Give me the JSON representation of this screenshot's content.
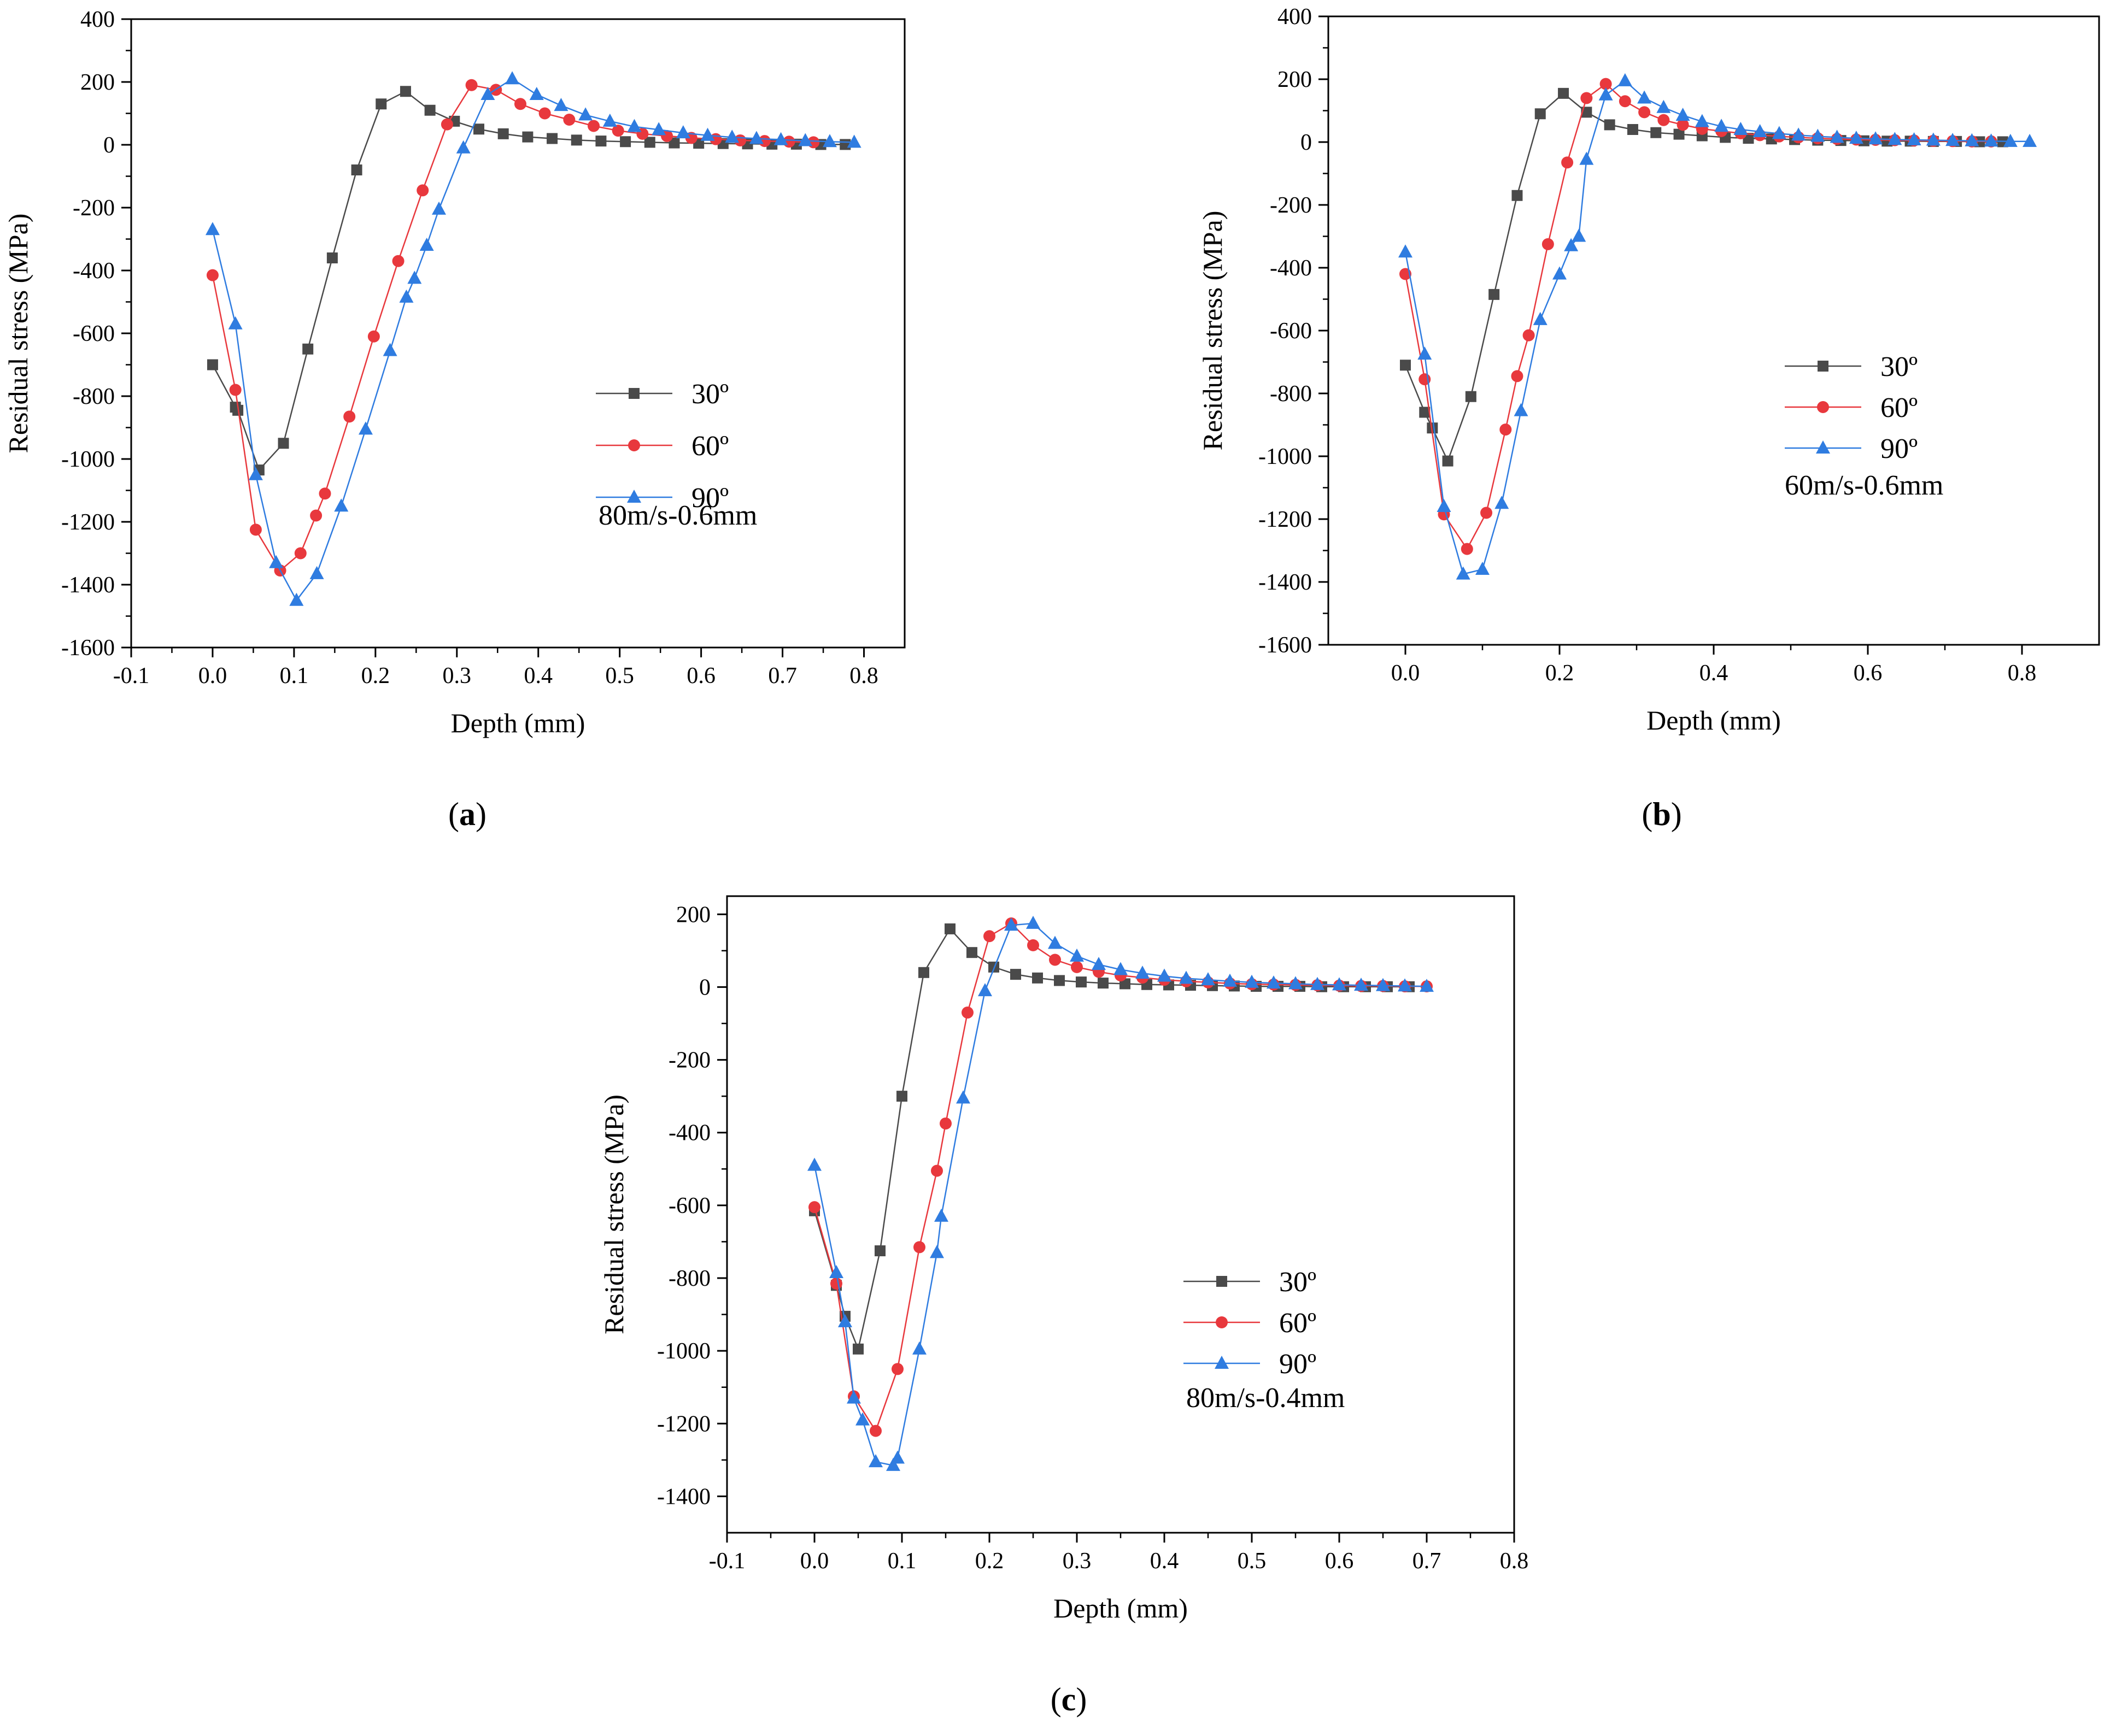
{
  "colors": {
    "30": "#4a4a4a",
    "60": "#e8383d",
    "90": "#2f7ce0"
  },
  "chart_data": [
    {
      "type": "line",
      "caption": "a",
      "xlabel": "Depth (mm)",
      "ylabel": "Residual stress (MPa)",
      "xlim": [
        -0.1,
        0.85
      ],
      "ylim": [
        -1600,
        400
      ],
      "xticks": [
        -0.1,
        0.0,
        0.1,
        0.2,
        0.3,
        0.4,
        0.5,
        0.6,
        0.7,
        0.8
      ],
      "xtick_labels": [
        "-0.1",
        "0.0",
        "0.1",
        "0.2",
        "0.3",
        "0.4",
        "0.5",
        "0.6",
        "0.7",
        "0.8"
      ],
      "yticks": [
        -1600,
        -1400,
        -1200,
        -1000,
        -800,
        -600,
        -400,
        -200,
        0,
        200,
        400
      ],
      "ytick_labels": [
        "-1600",
        "-1400",
        "-1200",
        "-1000",
        "-800",
        "-600",
        "-400",
        "-200",
        "0",
        "200",
        "400"
      ],
      "annotation": "80m/s-0.6mm",
      "legend_position": "center-right",
      "series": [
        {
          "name": "30º",
          "marker": "square",
          "color": "#4a4a4a",
          "x": [
            0.0,
            0.028,
            0.031,
            0.057,
            0.087,
            0.117,
            0.147,
            0.177,
            0.207,
            0.237,
            0.267,
            0.297,
            0.327,
            0.357,
            0.387,
            0.417,
            0.447,
            0.477,
            0.507,
            0.537,
            0.567,
            0.597,
            0.627,
            0.657,
            0.687,
            0.717,
            0.747,
            0.777
          ],
          "y": [
            -700,
            -835,
            -845,
            -1035,
            -950,
            -650,
            -360,
            -80,
            130,
            170,
            110,
            75,
            50,
            35,
            25,
            20,
            15,
            12,
            10,
            8,
            6,
            5,
            4,
            3,
            2,
            2,
            1,
            1
          ]
        },
        {
          "name": "60º",
          "marker": "circle",
          "color": "#e8383d",
          "x": [
            0.0,
            0.028,
            0.053,
            0.083,
            0.108,
            0.127,
            0.138,
            0.168,
            0.198,
            0.228,
            0.258,
            0.288,
            0.318,
            0.348,
            0.378,
            0.408,
            0.438,
            0.468,
            0.498,
            0.528,
            0.558,
            0.588,
            0.618,
            0.648,
            0.678,
            0.708,
            0.738
          ],
          "y": [
            -415,
            -780,
            -1225,
            -1355,
            -1300,
            -1180,
            -1110,
            -865,
            -610,
            -370,
            -145,
            65,
            190,
            175,
            130,
            100,
            80,
            60,
            45,
            35,
            28,
            22,
            18,
            14,
            12,
            10,
            8
          ]
        },
        {
          "name": "90º",
          "marker": "triangle",
          "color": "#2f7ce0",
          "x": [
            0.0,
            0.028,
            0.053,
            0.078,
            0.103,
            0.128,
            0.158,
            0.188,
            0.218,
            0.238,
            0.248,
            0.263,
            0.278,
            0.308,
            0.338,
            0.368,
            0.398,
            0.428,
            0.458,
            0.488,
            0.518,
            0.548,
            0.578,
            0.608,
            0.638,
            0.668,
            0.698,
            0.728,
            0.758,
            0.788
          ],
          "y": [
            -270,
            -570,
            -1050,
            -1330,
            -1450,
            -1365,
            -1150,
            -905,
            -655,
            -485,
            -425,
            -320,
            -205,
            -10,
            160,
            210,
            160,
            125,
            95,
            75,
            58,
            48,
            38,
            30,
            24,
            20,
            16,
            13,
            10,
            8
          ]
        }
      ]
    },
    {
      "type": "line",
      "caption": "b",
      "xlabel": "Depth (mm)",
      "ylabel": "Residual stress (MPa)",
      "xlim": [
        -0.1,
        0.9
      ],
      "ylim": [
        -1600,
        400
      ],
      "xticks": [
        0.0,
        0.2,
        0.4,
        0.6,
        0.8
      ],
      "xtick_labels": [
        "0.0",
        "0.2",
        "0.4",
        "0.6",
        "0.8"
      ],
      "yticks": [
        -1600,
        -1400,
        -1200,
        -1000,
        -800,
        -600,
        -400,
        -200,
        0,
        200,
        400
      ],
      "ytick_labels": [
        "-1600",
        "-1400",
        "-1200",
        "-1000",
        "-800",
        "-600",
        "-400",
        "-200",
        "0",
        "200",
        "400"
      ],
      "annotation": "60m/s-0.6mm",
      "legend_position": "center-right",
      "series": [
        {
          "name": "30º",
          "marker": "square",
          "color": "#4a4a4a",
          "x": [
            0.0,
            0.025,
            0.035,
            0.055,
            0.085,
            0.115,
            0.145,
            0.175,
            0.205,
            0.235,
            0.265,
            0.295,
            0.325,
            0.355,
            0.385,
            0.415,
            0.445,
            0.475,
            0.505,
            0.535,
            0.565,
            0.595,
            0.625,
            0.655,
            0.685,
            0.715,
            0.745,
            0.775
          ],
          "y": [
            -710,
            -860,
            -910,
            -1015,
            -810,
            -485,
            -170,
            90,
            155,
            95,
            55,
            40,
            30,
            25,
            20,
            15,
            12,
            10,
            8,
            6,
            5,
            4,
            3,
            3,
            2,
            2,
            1,
            1
          ]
        },
        {
          "name": "60º",
          "marker": "circle",
          "color": "#e8383d",
          "x": [
            0.0,
            0.025,
            0.05,
            0.08,
            0.105,
            0.13,
            0.145,
            0.16,
            0.185,
            0.21,
            0.235,
            0.26,
            0.285,
            0.31,
            0.335,
            0.36,
            0.385,
            0.41,
            0.435,
            0.46,
            0.485,
            0.51,
            0.535,
            0.56,
            0.585,
            0.61,
            0.635,
            0.66,
            0.685,
            0.71,
            0.735,
            0.76
          ],
          "y": [
            -420,
            -755,
            -1185,
            -1295,
            -1180,
            -915,
            -745,
            -615,
            -325,
            -65,
            140,
            185,
            130,
            95,
            70,
            55,
            42,
            35,
            28,
            22,
            18,
            15,
            12,
            10,
            8,
            7,
            6,
            5,
            4,
            3,
            2,
            2
          ]
        },
        {
          "name": "90º",
          "marker": "triangle",
          "color": "#2f7ce0",
          "x": [
            0.0,
            0.025,
            0.05,
            0.075,
            0.1,
            0.125,
            0.15,
            0.175,
            0.2,
            0.215,
            0.225,
            0.235,
            0.26,
            0.285,
            0.31,
            0.335,
            0.36,
            0.385,
            0.41,
            0.435,
            0.46,
            0.485,
            0.51,
            0.535,
            0.56,
            0.585,
            0.61,
            0.635,
            0.66,
            0.685,
            0.71,
            0.735,
            0.76,
            0.785,
            0.81
          ],
          "y": [
            -350,
            -675,
            -1160,
            -1375,
            -1360,
            -1150,
            -855,
            -565,
            -420,
            -330,
            -300,
            -55,
            150,
            195,
            140,
            110,
            85,
            65,
            50,
            40,
            33,
            27,
            22,
            18,
            15,
            12,
            10,
            8,
            7,
            6,
            5,
            4,
            3,
            2,
            2
          ]
        }
      ]
    },
    {
      "type": "line",
      "caption": "c",
      "xlabel": "Depth (mm)",
      "ylabel": "Residual stress (MPa)",
      "xlim": [
        -0.1,
        0.8
      ],
      "ylim": [
        -1500,
        250
      ],
      "xticks": [
        -0.1,
        0.0,
        0.1,
        0.2,
        0.3,
        0.4,
        0.5,
        0.6,
        0.7,
        0.8
      ],
      "xtick_labels": [
        "-0.1",
        "0.0",
        "0.1",
        "0.2",
        "0.3",
        "0.4",
        "0.5",
        "0.6",
        "0.7",
        "0.8"
      ],
      "yticks": [
        -1400,
        -1200,
        -1000,
        -800,
        -600,
        -400,
        -200,
        0,
        200
      ],
      "ytick_labels": [
        "-1400",
        "-1200",
        "-1000",
        "-800",
        "-600",
        "-400",
        "-200",
        "0",
        "200"
      ],
      "annotation": "80m/s-0.4mm",
      "legend_position": "center-right",
      "series": [
        {
          "name": "30º",
          "marker": "square",
          "color": "#4a4a4a",
          "x": [
            0.0,
            0.025,
            0.035,
            0.05,
            0.075,
            0.1,
            0.125,
            0.155,
            0.18,
            0.205,
            0.23,
            0.255,
            0.28,
            0.305,
            0.33,
            0.355,
            0.38,
            0.405,
            0.43,
            0.455,
            0.48,
            0.505,
            0.53,
            0.555,
            0.58,
            0.605,
            0.63,
            0.655,
            0.68
          ],
          "y": [
            -615,
            -820,
            -905,
            -995,
            -725,
            -300,
            40,
            160,
            95,
            55,
            35,
            25,
            18,
            14,
            11,
            9,
            7,
            6,
            5,
            4,
            3,
            2,
            2,
            2,
            1,
            1,
            1,
            1,
            1
          ]
        },
        {
          "name": "60º",
          "marker": "circle",
          "color": "#e8383d",
          "x": [
            0.0,
            0.025,
            0.045,
            0.07,
            0.095,
            0.12,
            0.14,
            0.15,
            0.175,
            0.2,
            0.225,
            0.25,
            0.275,
            0.3,
            0.325,
            0.35,
            0.375,
            0.4,
            0.425,
            0.45,
            0.475,
            0.5,
            0.525,
            0.55,
            0.575,
            0.6,
            0.625,
            0.65,
            0.675,
            0.7
          ],
          "y": [
            -605,
            -815,
            -1125,
            -1220,
            -1050,
            -715,
            -505,
            -375,
            -70,
            140,
            175,
            115,
            75,
            55,
            42,
            32,
            26,
            20,
            16,
            13,
            10,
            8,
            7,
            6,
            5,
            4,
            3,
            3,
            2,
            2
          ]
        },
        {
          "name": "90º",
          "marker": "triangle",
          "color": "#2f7ce0",
          "x": [
            0.0,
            0.025,
            0.035,
            0.045,
            0.055,
            0.07,
            0.09,
            0.095,
            0.12,
            0.14,
            0.145,
            0.17,
            0.195,
            0.225,
            0.25,
            0.275,
            0.3,
            0.325,
            0.35,
            0.375,
            0.4,
            0.425,
            0.45,
            0.475,
            0.5,
            0.525,
            0.55,
            0.575,
            0.6,
            0.625,
            0.65,
            0.675,
            0.7
          ],
          "y": [
            -490,
            -785,
            -920,
            -1130,
            -1190,
            -1305,
            -1315,
            -1295,
            -995,
            -730,
            -630,
            -305,
            -10,
            170,
            175,
            120,
            85,
            62,
            48,
            38,
            30,
            24,
            20,
            16,
            13,
            11,
            9,
            7,
            6,
            5,
            4,
            3,
            2
          ]
        }
      ]
    }
  ]
}
